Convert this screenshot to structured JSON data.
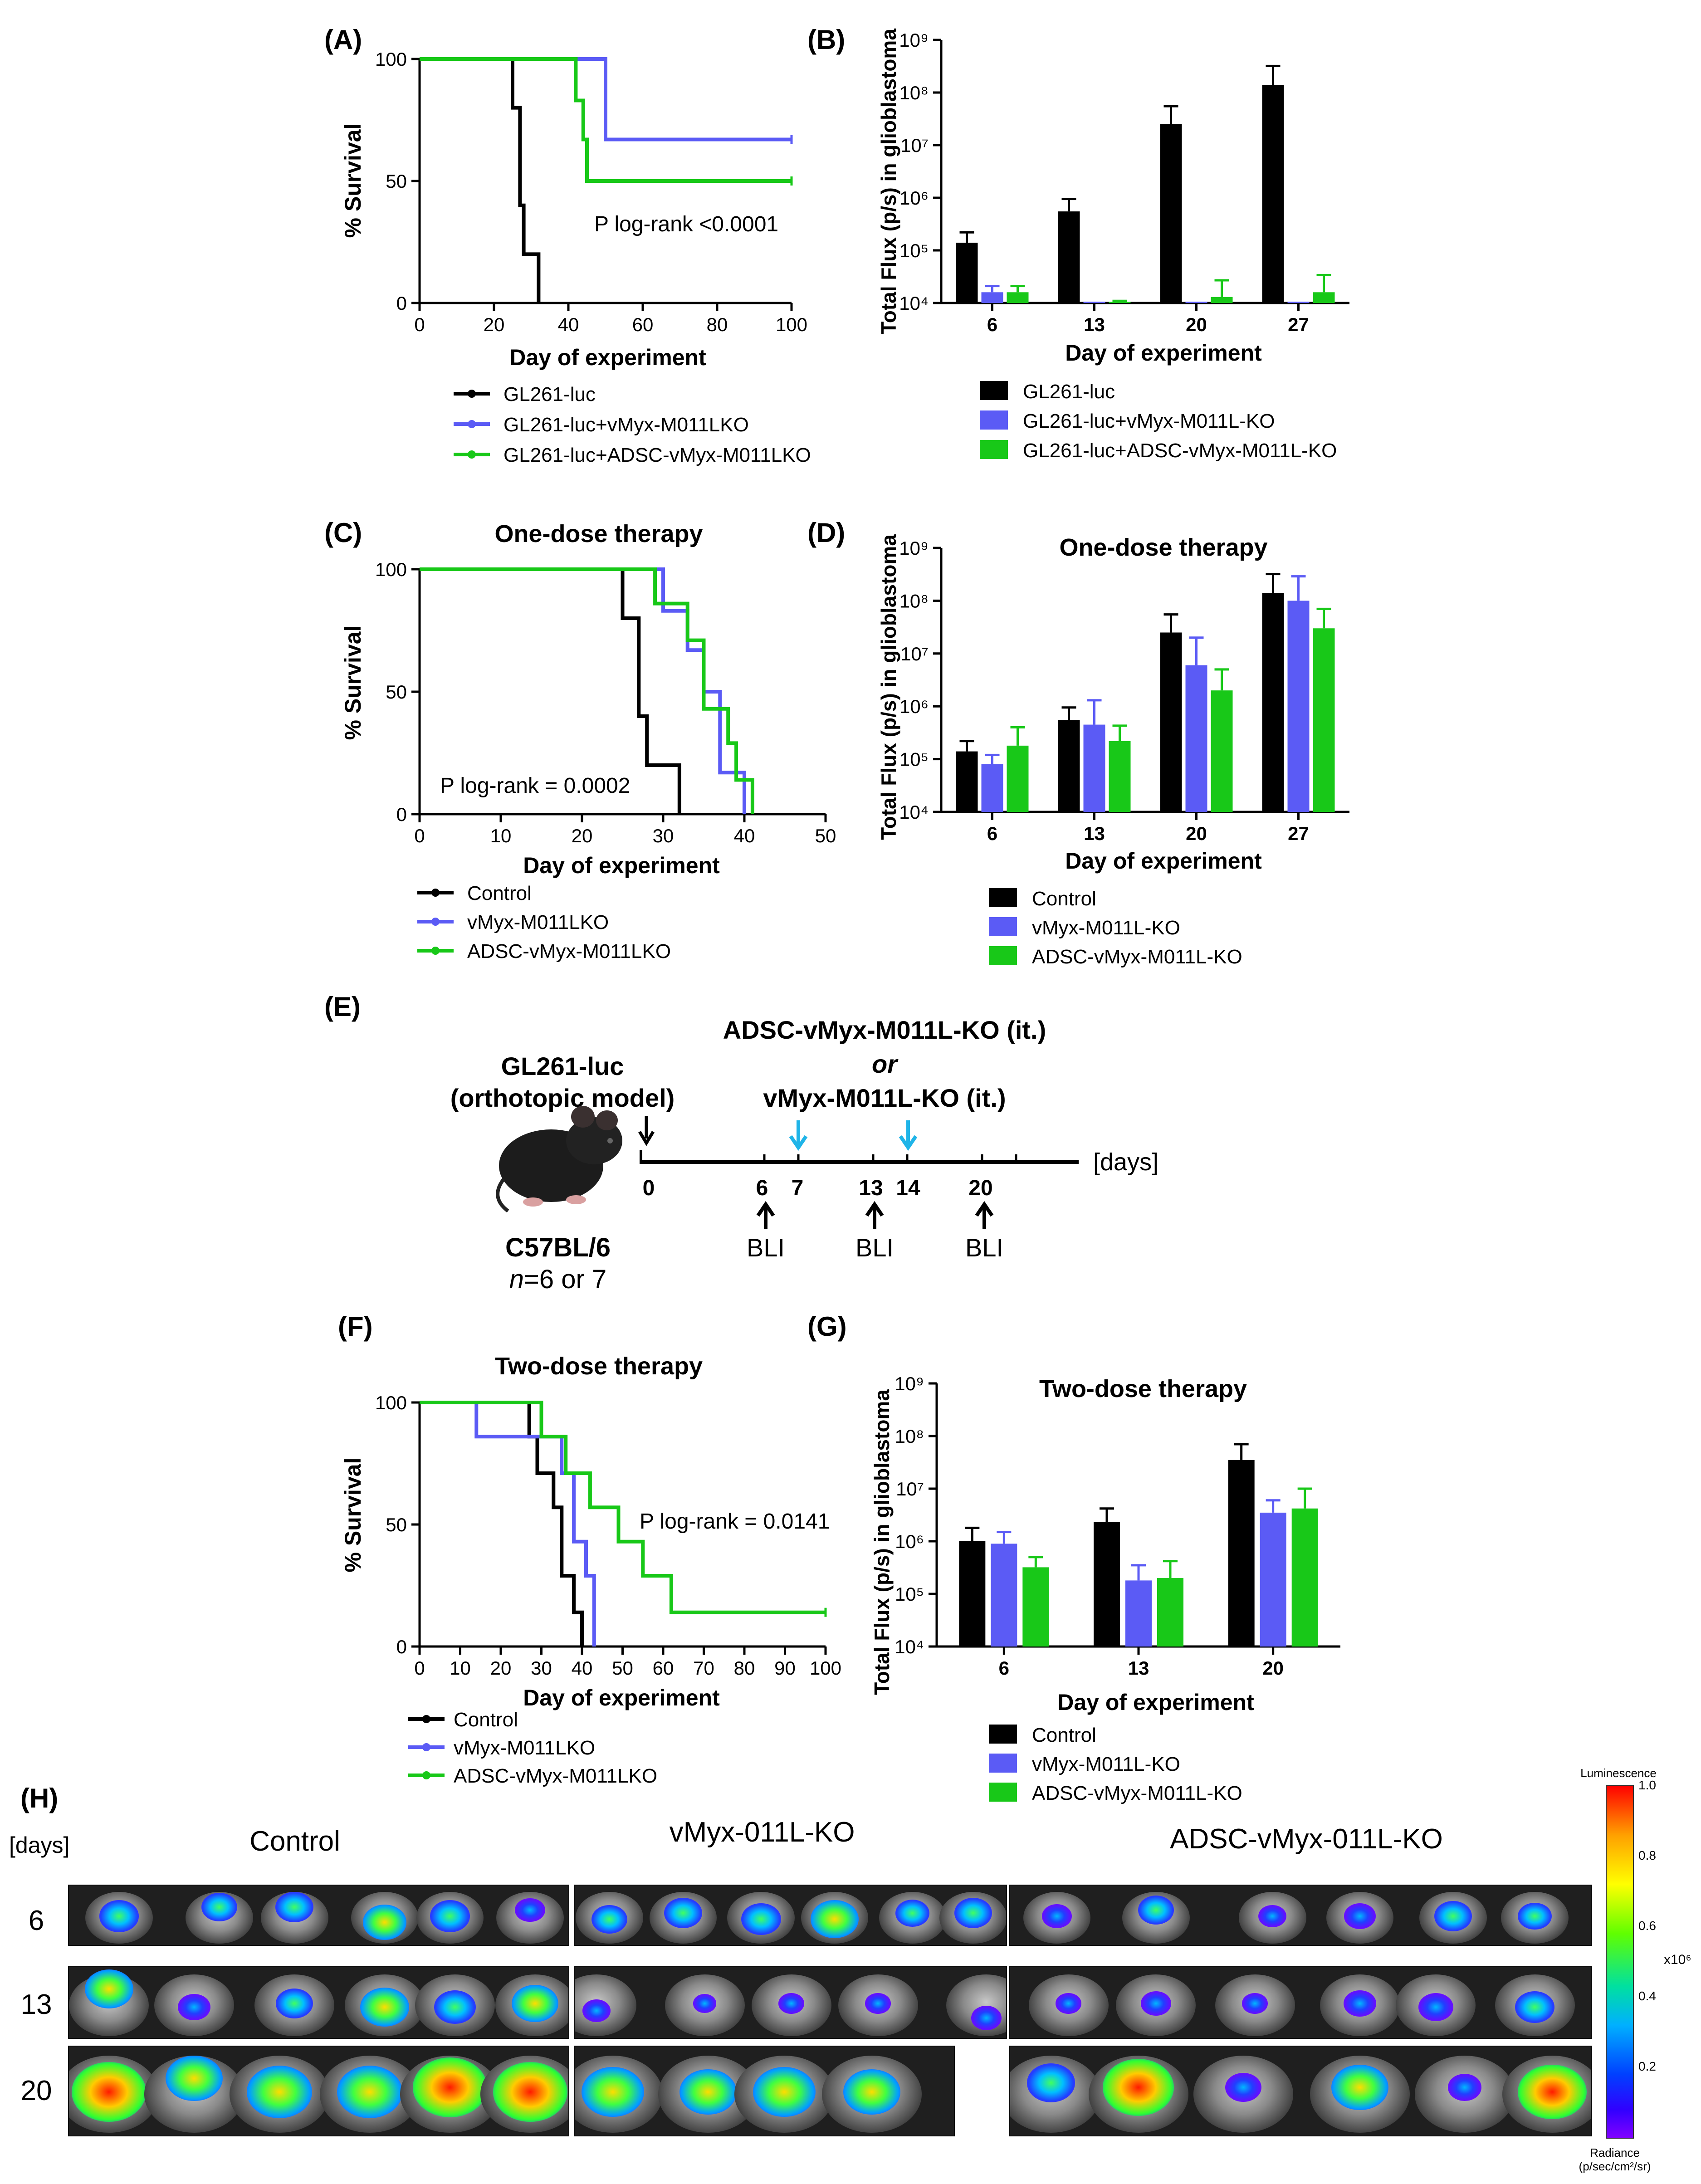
{
  "colors": {
    "black": "#000000",
    "blue": "#5b5bf5",
    "green": "#18c818",
    "cyan": "#1fb4e8"
  },
  "panels": {
    "A": {
      "label": "(A)",
      "ylabel": "% Survival",
      "xlabel": "Day of experiment",
      "annotation": "P log-rank <0.0001",
      "legend": [
        "GL261-luc",
        "GL261-luc+vMyx-M011LKO",
        "GL261-luc+ADSC-vMyx-M011LKO"
      ]
    },
    "B": {
      "label": "(B)",
      "ylabel": "Total Flux (p/s) in glioblastoma",
      "xlabel": "Day of experiment",
      "legend": [
        "GL261-luc",
        "GL261-luc+vMyx-M011L-KO",
        "GL261-luc+ADSC-vMyx-M011L-KO"
      ]
    },
    "C": {
      "label": "(C)",
      "title": "One-dose therapy",
      "ylabel": "% Survival",
      "xlabel": "Day of experiment",
      "annotation": "P log-rank = 0.0002",
      "legend": [
        "Control",
        "vMyx-M011LKO",
        "ADSC-vMyx-M011LKO"
      ]
    },
    "D": {
      "label": "(D)",
      "title": "One-dose therapy",
      "ylabel": "Total Flux (p/s) in glioblastoma",
      "xlabel": "Day of experiment",
      "legend": [
        "Control",
        "vMyx-M011L-KO",
        "ADSC-vMyx-M011L-KO"
      ]
    },
    "E": {
      "label": "(E)",
      "model_line1": "GL261-luc",
      "model_line2": "(orthotopic model)",
      "treat_line1": "ADSC-vMyx-M011L-KO (it.)",
      "treat_or": "or",
      "treat_line2": "vMyx-M011L-KO (it.)",
      "days_label": "[days]",
      "ticks": [
        "0",
        "6",
        "7",
        "13",
        "14",
        "20"
      ],
      "bli": "BLI",
      "strain": "C57BL/6",
      "n_prefix": "n",
      "n_suffix": "=6 or 7"
    },
    "F": {
      "label": "(F)",
      "title": "Two-dose therapy",
      "ylabel": "% Survival",
      "xlabel": "Day of experiment",
      "annotation": "P log-rank = 0.0141",
      "legend": [
        "Control",
        "vMyx-M011LKO",
        "ADSC-vMyx-M011LKO"
      ]
    },
    "G": {
      "label": "(G)",
      "title": "Two-dose therapy",
      "ylabel": "Total Flux (p/s) in glioblastoma",
      "xlabel": "Day of experiment",
      "legend": [
        "Control",
        "vMyx-M011L-KO",
        "ADSC-vMyx-M011L-KO"
      ]
    },
    "H": {
      "label": "(H)",
      "days_header": "[days]",
      "groups": [
        "Control",
        "vMyx-011L-KO",
        "ADSC-vMyx-011L-KO"
      ],
      "rows": [
        "6",
        "13",
        "20"
      ],
      "colorbar": {
        "title": "Luminescence",
        "ticks": [
          "1.0",
          "0.8",
          "0.6",
          "0.4",
          "0.2"
        ],
        "multiplier": "x10⁶",
        "unit_line1": "Radiance",
        "unit_line2": "(p/sec/cm²/sr)"
      }
    }
  },
  "chart_data": [
    {
      "panel": "A",
      "type": "line",
      "subtype": "kaplan-meier",
      "xlim": [
        0,
        100
      ],
      "ylim": [
        0,
        100
      ],
      "xticks": [
        0,
        20,
        40,
        60,
        80,
        100
      ],
      "yticks": [
        0,
        50,
        100
      ],
      "series": [
        {
          "name": "GL261-luc",
          "color": "black",
          "x": [
            0,
            25,
            25,
            27,
            27,
            28,
            28,
            29,
            29,
            32,
            32
          ],
          "y": [
            100,
            100,
            80,
            80,
            40,
            40,
            20,
            20,
            20,
            20,
            0
          ]
        },
        {
          "name": "GL261-luc+vMyx-M011LKO",
          "color": "blue",
          "x": [
            0,
            50,
            50,
            70,
            100
          ],
          "y": [
            100,
            100,
            67,
            67,
            67
          ]
        },
        {
          "name": "GL261-luc+ADSC-vMyx-M011LKO",
          "color": "green",
          "x": [
            0,
            42,
            42,
            44,
            44,
            45,
            45,
            100
          ],
          "y": [
            100,
            100,
            83,
            83,
            67,
            67,
            50,
            50
          ]
        }
      ]
    },
    {
      "panel": "B",
      "type": "bar",
      "yscale": "log",
      "ylim": [
        10000,
        1000000000
      ],
      "yticks": [
        "10⁴",
        "10⁵",
        "10⁶",
        "10⁷",
        "10⁸",
        "10⁹"
      ],
      "categories": [
        "6",
        "13",
        "20",
        "27"
      ],
      "series": [
        {
          "name": "GL261-luc",
          "color": "black",
          "values": [
            140000,
            550000,
            25000000,
            140000000
          ],
          "errors": [
            220000,
            950000,
            55000000,
            320000000
          ]
        },
        {
          "name": "GL261-luc+vMyx-M011L-KO",
          "color": "blue",
          "values": [
            16000,
            10000,
            10000,
            10000
          ],
          "errors": [
            21000,
            10000,
            10000,
            10000
          ]
        },
        {
          "name": "GL261-luc+ADSC-vMyx-M011L-KO",
          "color": "green",
          "values": [
            16000,
            10500,
            13000,
            16000
          ],
          "errors": [
            21000,
            11000,
            27000,
            34000
          ]
        }
      ]
    },
    {
      "panel": "C",
      "type": "line",
      "subtype": "kaplan-meier",
      "xlim": [
        0,
        50
      ],
      "ylim": [
        0,
        100
      ],
      "xticks": [
        0,
        10,
        20,
        30,
        40,
        50
      ],
      "yticks": [
        0,
        50,
        100
      ],
      "series": [
        {
          "name": "Control",
          "color": "black",
          "x": [
            0,
            25,
            25,
            27,
            27,
            28,
            28,
            32,
            32
          ],
          "y": [
            100,
            100,
            80,
            80,
            40,
            40,
            20,
            20,
            0
          ]
        },
        {
          "name": "vMyx-M011LKO",
          "color": "blue",
          "x": [
            0,
            30,
            30,
            33,
            33,
            35,
            35,
            37,
            37,
            40,
            40
          ],
          "y": [
            100,
            100,
            83,
            83,
            67,
            67,
            50,
            50,
            17,
            17,
            0
          ]
        },
        {
          "name": "ADSC-vMyx-M011LKO",
          "color": "green",
          "x": [
            0,
            29,
            29,
            33,
            33,
            35,
            35,
            38,
            38,
            39,
            39,
            41,
            41
          ],
          "y": [
            100,
            100,
            86,
            86,
            71,
            71,
            43,
            43,
            29,
            29,
            14,
            14,
            0
          ]
        }
      ]
    },
    {
      "panel": "D",
      "type": "bar",
      "yscale": "log",
      "ylim": [
        10000,
        1000000000
      ],
      "yticks": [
        "10⁴",
        "10⁵",
        "10⁶",
        "10⁷",
        "10⁸",
        "10⁹"
      ],
      "categories": [
        "6",
        "13",
        "20",
        "27"
      ],
      "series": [
        {
          "name": "Control",
          "color": "black",
          "values": [
            140000,
            550000,
            25000000,
            140000000
          ],
          "errors": [
            220000,
            950000,
            55000000,
            320000000
          ]
        },
        {
          "name": "vMyx-M011L-KO",
          "color": "blue",
          "values": [
            80000,
            450000,
            6000000,
            100000000
          ],
          "errors": [
            120000,
            1300000,
            20000000,
            290000000
          ]
        },
        {
          "name": "ADSC-vMyx-M011L-KO",
          "color": "green",
          "values": [
            180000,
            220000,
            2000000,
            30000000
          ],
          "errors": [
            400000,
            430000,
            5000000,
            70000000
          ]
        }
      ]
    },
    {
      "panel": "F",
      "type": "line",
      "subtype": "kaplan-meier",
      "xlim": [
        0,
        100
      ],
      "ylim": [
        0,
        100
      ],
      "xticks": [
        0,
        10,
        20,
        30,
        40,
        50,
        60,
        70,
        80,
        90,
        100
      ],
      "yticks": [
        0,
        50,
        100
      ],
      "series": [
        {
          "name": "Control",
          "color": "black",
          "x": [
            0,
            27,
            27,
            29,
            29,
            33,
            33,
            35,
            35,
            38,
            38,
            40,
            40
          ],
          "y": [
            100,
            100,
            86,
            86,
            71,
            71,
            57,
            57,
            29,
            29,
            14,
            14,
            0
          ]
        },
        {
          "name": "vMyx-M011LKO",
          "color": "blue",
          "x": [
            0,
            14,
            14,
            35,
            35,
            38,
            38,
            41,
            41,
            43,
            43
          ],
          "y": [
            100,
            100,
            86,
            86,
            71,
            71,
            43,
            43,
            29,
            29,
            0
          ]
        },
        {
          "name": "ADSC-vMyx-M011LKO",
          "color": "green",
          "x": [
            0,
            30,
            30,
            36,
            36,
            42,
            42,
            49,
            49,
            55,
            55,
            62,
            62,
            100
          ],
          "y": [
            100,
            100,
            86,
            86,
            71,
            71,
            57,
            57,
            43,
            43,
            29,
            29,
            14,
            14
          ]
        }
      ]
    },
    {
      "panel": "G",
      "type": "bar",
      "yscale": "log",
      "ylim": [
        10000,
        1000000000
      ],
      "yticks": [
        "10⁴",
        "10⁵",
        "10⁶",
        "10⁷",
        "10⁸",
        "10⁹"
      ],
      "categories": [
        "6",
        "13",
        "20"
      ],
      "series": [
        {
          "name": "Control",
          "color": "black",
          "values": [
            1000000,
            2300000,
            35000000
          ],
          "errors": [
            1800000,
            4200000,
            70000000
          ]
        },
        {
          "name": "vMyx-M011L-KO",
          "color": "blue",
          "values": [
            900000,
            180000,
            3500000
          ],
          "errors": [
            1500000,
            350000,
            6000000
          ]
        },
        {
          "name": "ADSC-vMyx-M011L-KO",
          "color": "green",
          "values": [
            320000,
            200000,
            4200000
          ],
          "errors": [
            500000,
            420000,
            10000000
          ]
        }
      ]
    }
  ]
}
